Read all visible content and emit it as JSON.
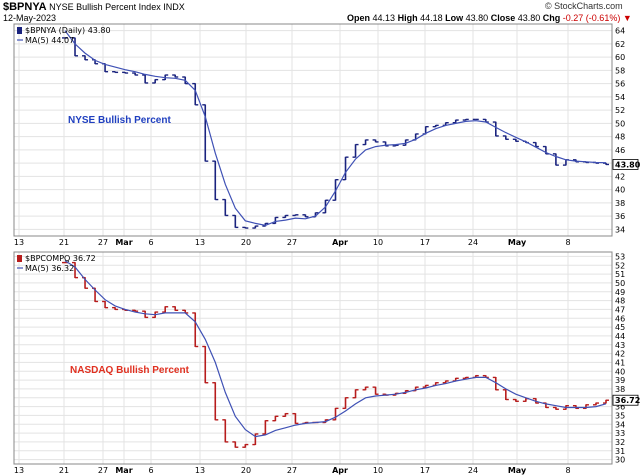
{
  "header": {
    "symbol": "$BPNYA",
    "index_name": "NYSE Bullish Percent Index",
    "exchange": "INDX",
    "date": "12-May-2023",
    "open_label": "Open",
    "open": "44.13",
    "high_label": "High",
    "high": "44.18",
    "low_label": "Low",
    "low": "43.80",
    "close_label": "Close",
    "close": "43.80",
    "chg_label": "Chg",
    "chg": "-0.27 (-0.61%)",
    "chg_icon": "down-arrow-icon",
    "credit": "© StockCharts.com"
  },
  "colors": {
    "nyse_bars": "#1a237e",
    "nyse_ma": "#3f51b5",
    "nasdaq_bars": "#b71c1c",
    "nasdaq_ma": "#3f51b5",
    "grid": "#e3e3e3",
    "nyse_annotation": "#1f3fbf",
    "nasdaq_annotation": "#e03020"
  },
  "chart_data": [
    {
      "type": "ohlc",
      "legend": [
        "$BPNYA (Daily) 43.80",
        "MA(5) 44.07"
      ],
      "annotation": "NYSE Bullish Percent",
      "last_value_label": "43.80",
      "ylim": [
        33,
        65
      ],
      "yticks": [
        34,
        36,
        38,
        40,
        42,
        44,
        46,
        48,
        50,
        52,
        54,
        56,
        58,
        60,
        62,
        64
      ],
      "grid": true,
      "x_tick_labels": [
        "13",
        "21",
        "27",
        "Mar",
        "6",
        "13",
        "20",
        "27",
        "Apr",
        "10",
        "17",
        "24",
        "May",
        "8"
      ],
      "series": [
        {
          "name": "$BPNYA",
          "values": [
            62.9,
            60.2,
            59.6,
            59.0,
            57.8,
            57.7,
            57.6,
            57.3,
            56.1,
            56.6,
            57.3,
            57.0,
            56.0,
            52.8,
            44.3,
            38.5,
            36.1,
            34.3,
            34.2,
            34.5,
            34.9,
            35.8,
            36.1,
            36.2,
            35.9,
            36.5,
            38.4,
            41.5,
            44.9,
            46.8,
            47.5,
            47.2,
            46.6,
            46.7,
            47.5,
            48.4,
            49.5,
            49.7,
            50.1,
            50.5,
            50.6,
            50.6,
            50.2,
            48.1,
            47.6,
            47.3,
            47.1,
            46.5,
            45.4,
            43.7,
            44.5,
            44.2,
            44.1,
            44.0,
            43.8
          ]
        },
        {
          "name": "MA(5)",
          "values": [
            64.0,
            62.0,
            60.6,
            59.5,
            58.9,
            58.5,
            58.1,
            57.8,
            57.4,
            57.1,
            56.9,
            56.8,
            56.5,
            55.0,
            51.0,
            45.5,
            40.8,
            37.2,
            35.3,
            34.9,
            34.6,
            35.2,
            35.4,
            35.7,
            35.6,
            36.0,
            37.4,
            39.8,
            42.6,
            44.6,
            46.0,
            46.5,
            46.7,
            46.8,
            47.0,
            47.6,
            48.5,
            49.2,
            49.7,
            50.0,
            50.3,
            50.4,
            50.2,
            49.4,
            48.6,
            47.9,
            47.2,
            46.4,
            45.6,
            45.0,
            44.5,
            44.3,
            44.2,
            44.1,
            44.07
          ]
        }
      ]
    },
    {
      "type": "ohlc",
      "legend": [
        "$BPCOMPQ 36.72",
        "MA(5) 36.32"
      ],
      "annotation": "NASDAQ Bullish Percent",
      "last_value_label": "36.72",
      "ylim": [
        29.5,
        53.5
      ],
      "yticks": [
        30,
        31,
        32,
        33,
        34,
        35,
        36,
        37,
        38,
        39,
        40,
        41,
        42,
        43,
        44,
        45,
        46,
        47,
        48,
        49,
        50,
        51,
        52,
        53
      ],
      "grid": true,
      "x_tick_labels": [
        "13",
        "21",
        "27",
        "Mar",
        "6",
        "13",
        "20",
        "27",
        "Apr",
        "10",
        "17",
        "24",
        "May",
        "8"
      ],
      "series": [
        {
          "name": "$BPCOMPQ",
          "values": [
            52.3,
            50.6,
            49.4,
            47.9,
            47.2,
            47.0,
            46.9,
            46.8,
            46.1,
            46.7,
            47.3,
            46.9,
            46.6,
            42.8,
            38.7,
            34.5,
            32.0,
            31.4,
            31.7,
            32.9,
            34.4,
            34.9,
            35.2,
            34.1,
            34.2,
            34.2,
            34.5,
            35.8,
            37.0,
            37.9,
            38.2,
            37.4,
            37.3,
            37.5,
            37.8,
            38.2,
            38.4,
            38.7,
            38.9,
            39.2,
            39.3,
            39.5,
            39.3,
            37.9,
            36.8,
            36.6,
            36.9,
            36.4,
            35.9,
            35.7,
            36.1,
            35.8,
            36.2,
            36.4,
            36.72
          ]
        },
        {
          "name": "MA(5)",
          "values": [
            52.5,
            51.8,
            50.4,
            49.2,
            48.1,
            47.4,
            47.0,
            46.7,
            46.5,
            46.4,
            46.6,
            46.6,
            46.6,
            45.6,
            43.6,
            41.0,
            37.6,
            34.9,
            33.4,
            32.6,
            32.8,
            33.3,
            33.6,
            33.9,
            34.1,
            34.2,
            34.3,
            34.8,
            35.5,
            36.3,
            37.0,
            37.2,
            37.3,
            37.4,
            37.6,
            37.9,
            38.1,
            38.4,
            38.6,
            38.9,
            39.1,
            39.3,
            39.3,
            38.7,
            38.0,
            37.4,
            37.0,
            36.6,
            36.3,
            36.1,
            35.9,
            35.9,
            35.9,
            36.0,
            36.32
          ]
        }
      ]
    }
  ]
}
